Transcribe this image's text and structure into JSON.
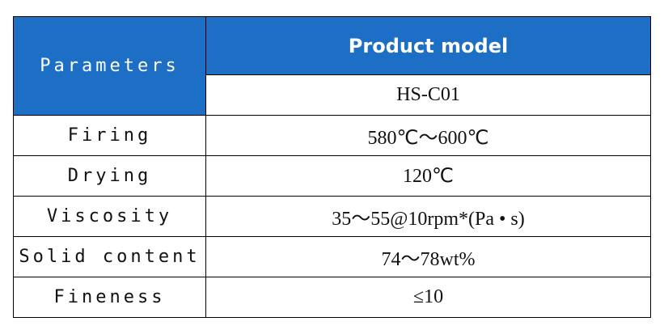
{
  "table": {
    "header": {
      "parameters": "Parameters",
      "product_model": "Product model",
      "model": "HS-C01"
    },
    "rows": [
      [
        "Firing",
        "580℃～600℃"
      ],
      [
        "Drying",
        "120℃"
      ],
      [
        "Viscosity",
        "35～55@10rpm*(Pa • s)"
      ],
      [
        "Solid content",
        "74～78wt%"
      ],
      [
        "Fineness",
        "≤10"
      ]
    ]
  }
}
